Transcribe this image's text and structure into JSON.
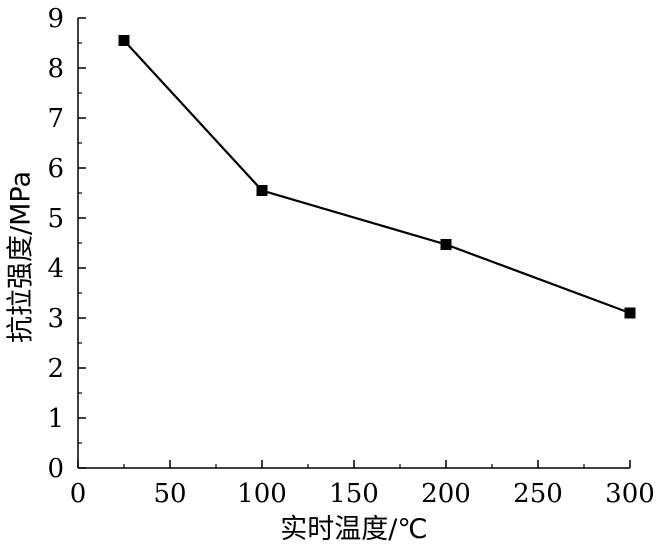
{
  "chart_data": {
    "type": "line",
    "title": "",
    "xlabel": "实时温度/℃",
    "ylabel": "抗拉强度/MPa",
    "xlim": [
      0,
      300
    ],
    "ylim": [
      0,
      9
    ],
    "x_ticks": [
      0,
      50,
      100,
      150,
      200,
      250,
      300
    ],
    "y_ticks": [
      0,
      1,
      2,
      3,
      4,
      5,
      6,
      7,
      8,
      9
    ],
    "grid": false,
    "legend": "none",
    "series": [
      {
        "marker": "square",
        "color": "#000000",
        "x": [
          25,
          100,
          200,
          300
        ],
        "y": [
          8.55,
          5.55,
          4.47,
          3.1
        ]
      }
    ]
  }
}
